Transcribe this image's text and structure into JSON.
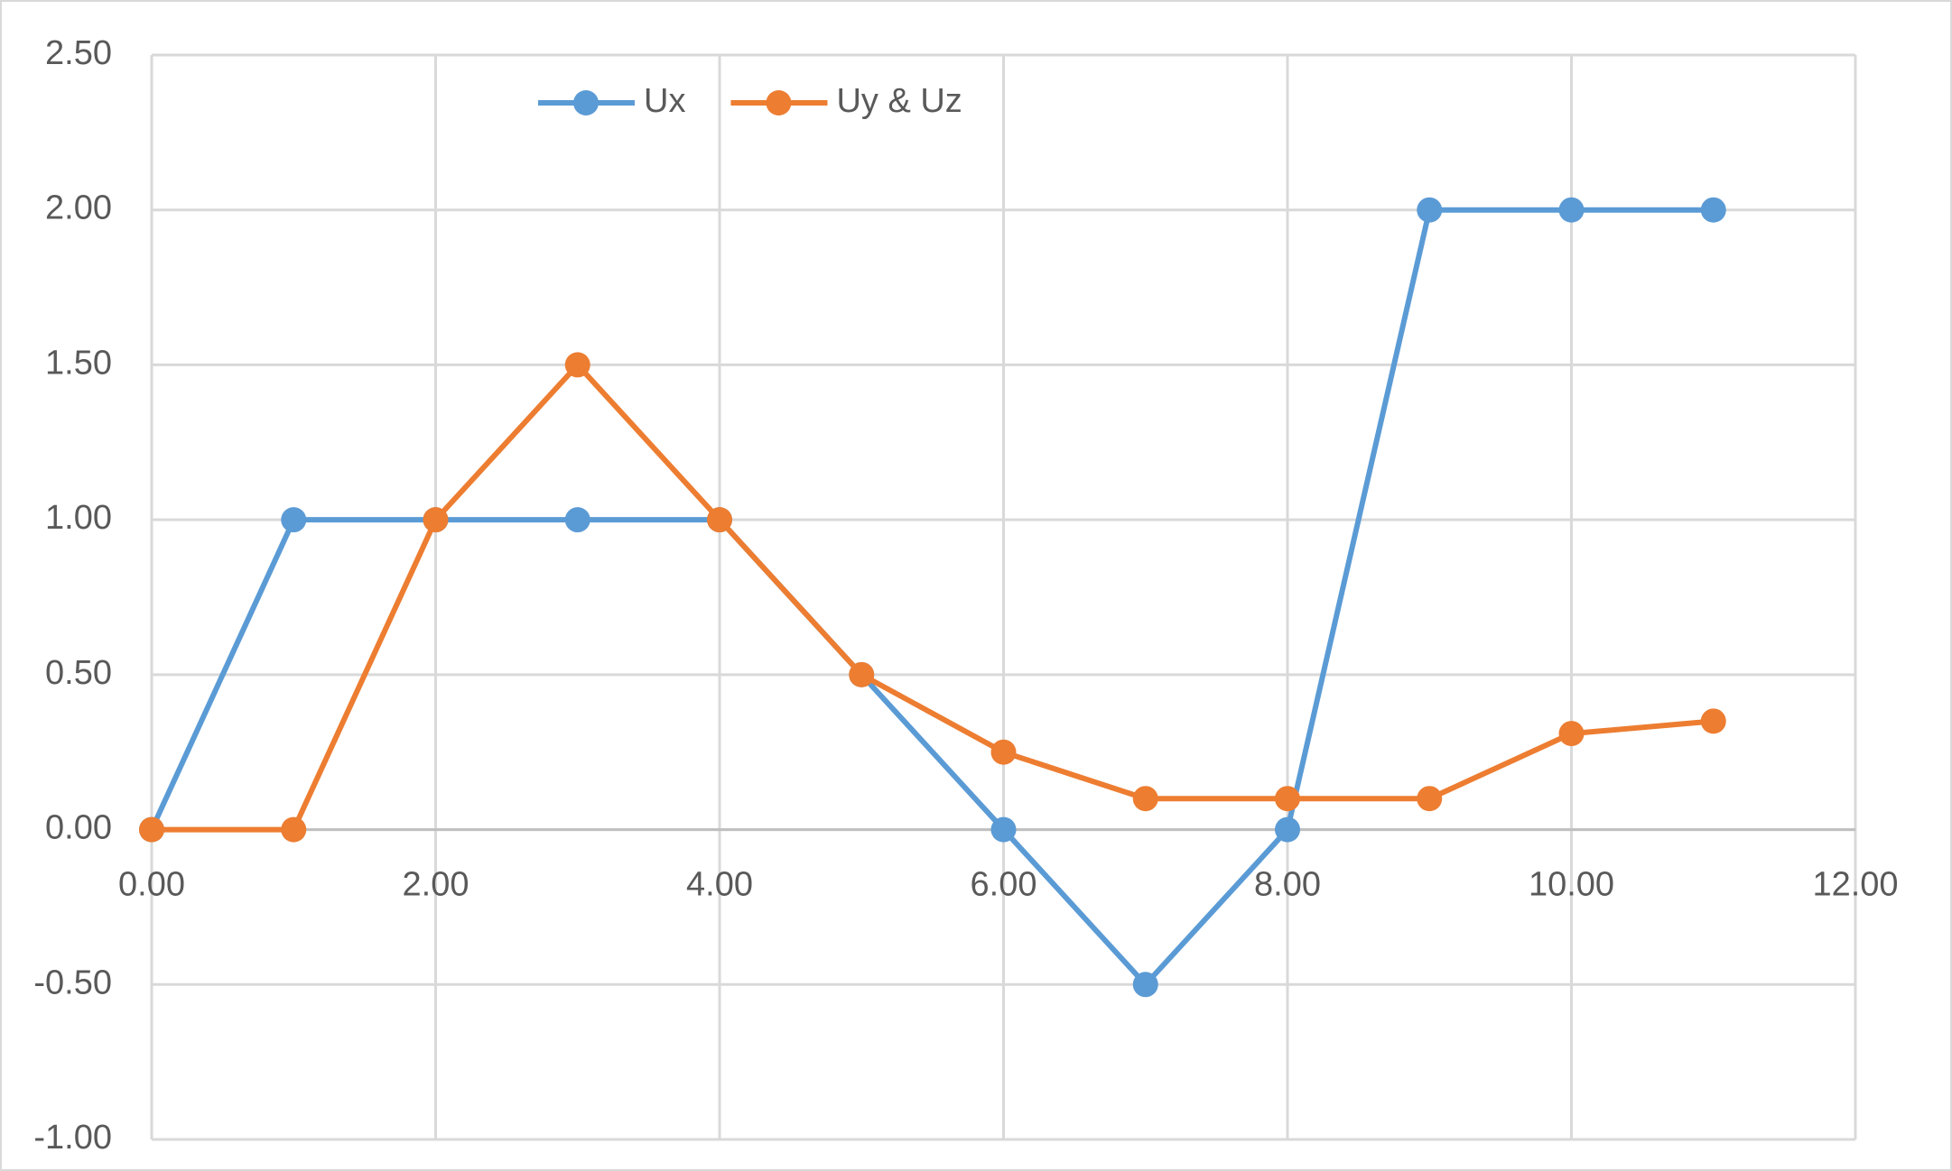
{
  "chart_data": {
    "type": "line",
    "x": [
      0,
      1,
      2,
      3,
      4,
      5,
      6,
      7,
      8,
      9,
      10,
      11
    ],
    "series": [
      {
        "name": "Ux",
        "color": "#5b9bd5",
        "values": [
          0,
          1,
          1,
          1,
          1,
          0.5,
          0,
          -0.5,
          0,
          2,
          2,
          2
        ]
      },
      {
        "name": "Uy & Uz",
        "color": "#ed7d31",
        "values": [
          0,
          0,
          1,
          1.5,
          1,
          0.5,
          0.25,
          0.1,
          0.1,
          0.1,
          0.31,
          0.35
        ]
      }
    ],
    "xlim": [
      0,
      12
    ],
    "xticks": [
      {
        "value": 0,
        "label": "0.00"
      },
      {
        "value": 2,
        "label": "2.00"
      },
      {
        "value": 4,
        "label": "4.00"
      },
      {
        "value": 6,
        "label": "6.00"
      },
      {
        "value": 8,
        "label": "8.00"
      },
      {
        "value": 10,
        "label": "10.00"
      },
      {
        "value": 12,
        "label": "12.00"
      }
    ],
    "ylim": [
      -1,
      2.5
    ],
    "yticks": [
      {
        "value": -1,
        "label": "-1.00"
      },
      {
        "value": -0.5,
        "label": "-0.50"
      },
      {
        "value": 0,
        "label": "0.00"
      },
      {
        "value": 0.5,
        "label": "0.50"
      },
      {
        "value": 1,
        "label": "1.00"
      },
      {
        "value": 1.5,
        "label": "1.50"
      },
      {
        "value": 2,
        "label": "2.00"
      },
      {
        "value": 2.5,
        "label": "2.50"
      }
    ],
    "grid": true,
    "legend_position": "top"
  }
}
